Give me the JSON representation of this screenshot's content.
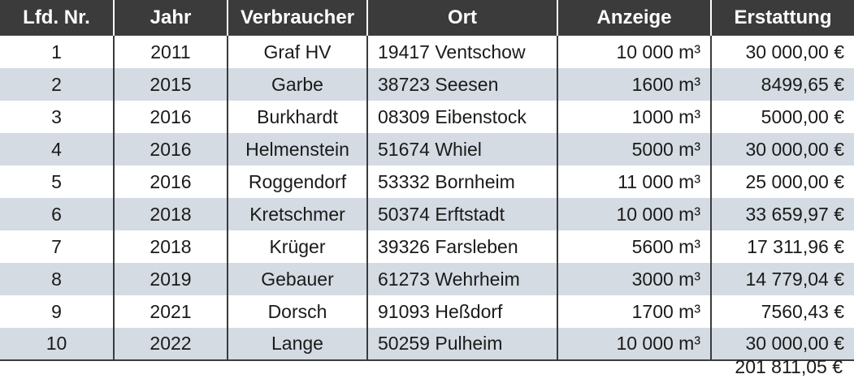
{
  "table": {
    "headers": [
      "Lfd. Nr.",
      "Jahr",
      "Verbraucher",
      "Ort",
      "Anzeige",
      "Erstattung"
    ],
    "rows": [
      {
        "nr": "1",
        "jahr": "2011",
        "verbraucher": "Graf HV",
        "ort": "19417 Ventschow",
        "anzeige": "10 000 m³",
        "erstattung": "30 000,00 €"
      },
      {
        "nr": "2",
        "jahr": "2015",
        "verbraucher": "Garbe",
        "ort": "38723 Seesen",
        "anzeige": "1600 m³",
        "erstattung": "8499,65 €"
      },
      {
        "nr": "3",
        "jahr": "2016",
        "verbraucher": "Burkhardt",
        "ort": "08309 Eibenstock",
        "anzeige": "1000 m³",
        "erstattung": "5000,00 €"
      },
      {
        "nr": "4",
        "jahr": "2016",
        "verbraucher": "Helmenstein",
        "ort": "51674 Whiel",
        "anzeige": "5000 m³",
        "erstattung": "30 000,00 €"
      },
      {
        "nr": "5",
        "jahr": "2016",
        "verbraucher": "Roggendorf",
        "ort": "53332 Bornheim",
        "anzeige": "11 000 m³",
        "erstattung": "25 000,00 €"
      },
      {
        "nr": "6",
        "jahr": "2018",
        "verbraucher": "Kretschmer",
        "ort": "50374 Erftstadt",
        "anzeige": "10 000 m³",
        "erstattung": "33 659,97 €"
      },
      {
        "nr": "7",
        "jahr": "2018",
        "verbraucher": "Krüger",
        "ort": "39326 Farsleben",
        "anzeige": "5600 m³",
        "erstattung": "17 311,96 €"
      },
      {
        "nr": "8",
        "jahr": "2019",
        "verbraucher": "Gebauer",
        "ort": "61273 Wehrheim",
        "anzeige": "3000 m³",
        "erstattung": "14 779,04 €"
      },
      {
        "nr": "9",
        "jahr": "2021",
        "verbraucher": "Dorsch",
        "ort": "91093 Heßdorf",
        "anzeige": "1700 m³",
        "erstattung": "7560,43 €"
      },
      {
        "nr": "10",
        "jahr": "2022",
        "verbraucher": "Lange",
        "ort": "50259 Pulheim",
        "anzeige": "10 000 m³",
        "erstattung": "30 000,00 €"
      }
    ],
    "total": "201 811,05 €"
  },
  "colors": {
    "header_bg": "#3b3b3b",
    "header_text": "#ffffff",
    "stripe_bg": "#d4dbe2",
    "row_bg": "#ffffff",
    "text": "#1a1a1a"
  }
}
